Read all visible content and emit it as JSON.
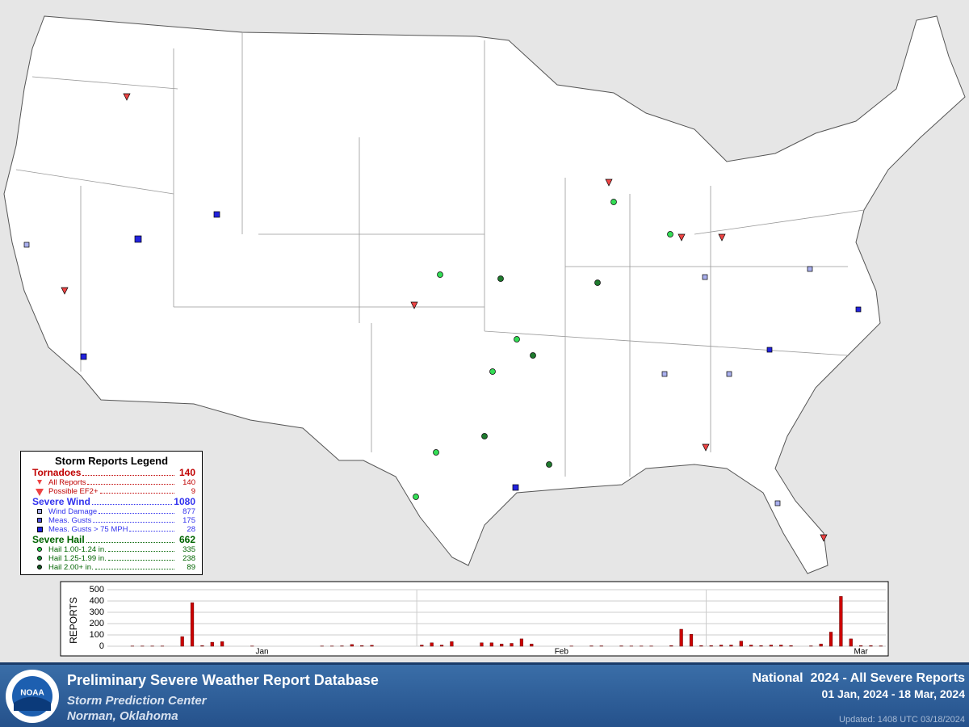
{
  "legend": {
    "title": "Storm Reports Legend",
    "tornadoes": {
      "label": "Tornadoes",
      "total": 140,
      "items": [
        {
          "label": "All Reports",
          "count": 140
        },
        {
          "label": "Possible EF2+",
          "count": 9
        }
      ]
    },
    "wind": {
      "label": "Severe Wind",
      "total": 1080,
      "items": [
        {
          "label": "Wind Damage",
          "count": 877
        },
        {
          "label": "Meas. Gusts",
          "count": 175
        },
        {
          "label": "Meas. Gusts > 75 MPH",
          "count": 28
        }
      ]
    },
    "hail": {
      "label": "Severe Hail",
      "total": 662,
      "items": [
        {
          "label": "Hail 1.00-1.24 in.",
          "count": 335
        },
        {
          "label": "Hail 1.25-1.99 in.",
          "count": 238
        },
        {
          "label": "Hail 2.00+ in.",
          "count": 89
        }
      ]
    }
  },
  "chart_data": {
    "type": "bar",
    "y_label": "REPORTS",
    "color": "#cc0000",
    "categories": [
      null,
      null,
      null,
      null,
      null,
      null,
      null,
      null,
      null,
      null,
      null,
      null,
      null,
      null,
      null,
      "Jan",
      null,
      null,
      null,
      null,
      null,
      null,
      null,
      null,
      null,
      null,
      null,
      null,
      null,
      null,
      null,
      null,
      null,
      null,
      null,
      null,
      null,
      null,
      null,
      null,
      null,
      null,
      null,
      null,
      null,
      "Feb",
      null,
      null,
      null,
      null,
      null,
      null,
      null,
      null,
      null,
      null,
      null,
      null,
      null,
      null,
      null,
      null,
      null,
      null,
      null,
      null,
      null,
      null,
      null,
      null,
      null,
      null,
      null,
      null,
      null,
      "Mar",
      null,
      null
    ],
    "values": [
      0,
      0,
      2,
      2,
      2,
      2,
      0,
      85,
      385,
      5,
      35,
      40,
      0,
      0,
      2,
      0,
      0,
      0,
      0,
      0,
      0,
      2,
      2,
      3,
      15,
      5,
      8,
      0,
      0,
      0,
      0,
      10,
      30,
      10,
      40,
      0,
      0,
      30,
      30,
      20,
      25,
      65,
      20,
      0,
      0,
      0,
      2,
      0,
      3,
      3,
      0,
      3,
      2,
      2,
      2,
      0,
      5,
      150,
      105,
      5,
      5,
      10,
      10,
      45,
      10,
      5,
      10,
      10,
      5,
      0,
      3,
      20,
      125,
      440,
      65,
      5,
      5,
      3
    ],
    "ylim": [
      0,
      500
    ],
    "yticks": [
      0,
      100,
      200,
      300,
      400,
      500
    ],
    "grid": true
  },
  "footer": {
    "title": "Preliminary Severe Weather Report Database",
    "org": "Storm Prediction Center",
    "place": "Norman, Oklahoma",
    "heading": "National  2024 - All Severe Reports",
    "dates": "01 Jan, 2024 - 18 Mar, 2024",
    "updated": "Updated: 1408 UTC 03/18/2024",
    "logo": "NOAA"
  }
}
